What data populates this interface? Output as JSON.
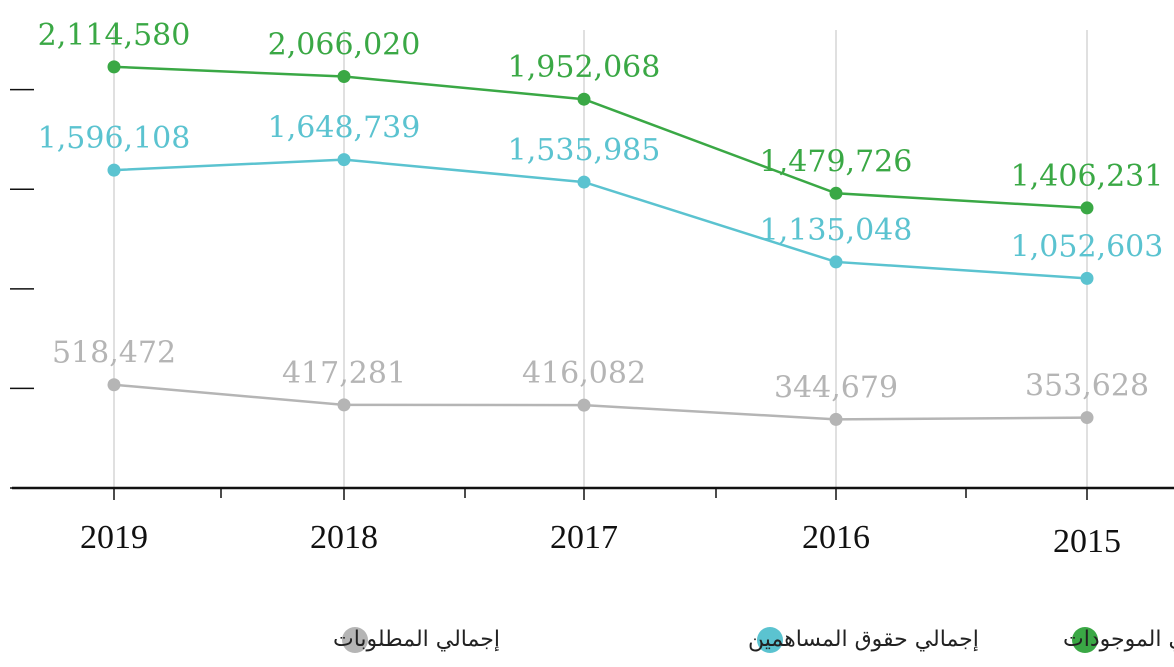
{
  "chart_data": {
    "type": "line",
    "categories": [
      "2019",
      "2018",
      "2017",
      "2016",
      "2015"
    ],
    "series": [
      {
        "name": "إجمالي الموجودات",
        "color": "#3aa845",
        "values": [
          2114580,
          2066020,
          1952068,
          1479726,
          1406231
        ],
        "value_labels": [
          "2,114,580",
          "2,066,020",
          "1,952,068",
          "1,479,726",
          "1,406,231"
        ]
      },
      {
        "name": "إجمالي حقوق المساهمين",
        "color": "#5bc3d0",
        "values": [
          1596108,
          1648739,
          1535985,
          1135048,
          1052603
        ],
        "value_labels": [
          "1,596,108",
          "1,648,739",
          "1,535,985",
          "1,135,048",
          "1,052,603"
        ]
      },
      {
        "name": "إجمالي المطلوبات",
        "color": "#b5b5b5",
        "values": [
          518472,
          417281,
          416082,
          344679,
          353628
        ],
        "value_labels": [
          "518,472",
          "417,281",
          "416,082",
          "344,679",
          "353,628"
        ]
      }
    ],
    "ylim": [
      0,
      2400000
    ],
    "yticks": [
      0,
      500000,
      1000000,
      1500000,
      2000000
    ],
    "grid": true
  }
}
